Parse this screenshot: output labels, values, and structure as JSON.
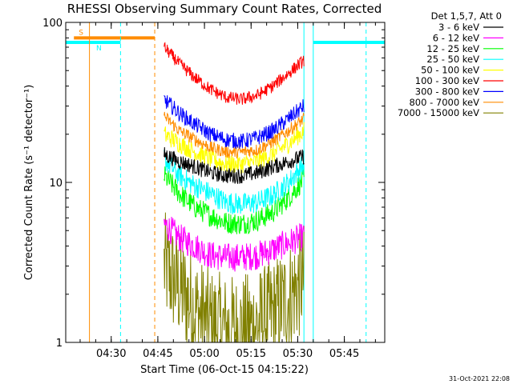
{
  "chart_data": {
    "type": "line",
    "title": "RHESSI Observing Summary Count Rates, Corrected",
    "xlabel": "Start Time (06-Oct-15 04:15:22)",
    "ylabel": "Corrected Count Rate (s⁻¹ detector⁻¹)",
    "xscale": "time",
    "yscale": "log",
    "xlim": [
      "04:15:22",
      "05:58:00"
    ],
    "ylim": [
      1,
      100
    ],
    "x_ticks": [
      "04:30",
      "04:45",
      "05:00",
      "05:15",
      "05:30",
      "05:45"
    ],
    "y_ticks": [
      "1",
      "10",
      "100"
    ],
    "legend_title": "Det 1,5,7, Att 0",
    "legend_position": "right",
    "series": [
      {
        "name": "3 - 6 keV",
        "color": "#000000",
        "x": [
          "04:47",
          "04:52",
          "04:57",
          "05:02",
          "05:07",
          "05:12",
          "05:17",
          "05:22",
          "05:27",
          "05:32"
        ],
        "values": [
          15,
          13.5,
          12.5,
          11.5,
          11,
          11,
          11.5,
          12.5,
          13.5,
          14.5
        ]
      },
      {
        "name": "6 - 12 keV",
        "color": "#ff00ff",
        "x": [
          "04:47",
          "04:52",
          "04:57",
          "05:02",
          "05:07",
          "05:12",
          "05:17",
          "05:22",
          "05:27",
          "05:32"
        ],
        "values": [
          5.5,
          4.5,
          4,
          3.5,
          3.4,
          3.4,
          3.5,
          3.8,
          4.2,
          4.6
        ]
      },
      {
        "name": "12 - 25 keV",
        "color": "#00ff00",
        "x": [
          "04:47",
          "04:52",
          "04:57",
          "05:02",
          "05:07",
          "05:12",
          "05:17",
          "05:22",
          "05:27",
          "05:32"
        ],
        "values": [
          11,
          8.5,
          7,
          6.2,
          5.6,
          5.5,
          5.8,
          6.5,
          8,
          10.5
        ]
      },
      {
        "name": "25 - 50 keV",
        "color": "#00ffff",
        "x": [
          "04:47",
          "04:52",
          "04:57",
          "05:02",
          "05:07",
          "05:12",
          "05:17",
          "05:22",
          "05:27",
          "05:32"
        ],
        "values": [
          14,
          11,
          9.5,
          8.5,
          7.5,
          7.3,
          7.5,
          8.3,
          10,
          13
        ]
      },
      {
        "name": "50 - 100 keV",
        "color": "#ffff00",
        "x": [
          "04:47",
          "04:52",
          "04:57",
          "05:02",
          "05:07",
          "05:12",
          "05:17",
          "05:22",
          "05:27",
          "05:32"
        ],
        "values": [
          20,
          17.5,
          15.5,
          14,
          13,
          13,
          13.5,
          15,
          17.5,
          21
        ]
      },
      {
        "name": "100 - 300 keV",
        "color": "#ff0000",
        "x": [
          "04:47",
          "04:52",
          "04:57",
          "05:02",
          "05:07",
          "05:12",
          "05:17",
          "05:22",
          "05:27",
          "05:32"
        ],
        "values": [
          70,
          55,
          45,
          38,
          34,
          33,
          35,
          40,
          48,
          58
        ]
      },
      {
        "name": "300 - 800 keV",
        "color": "#0000ff",
        "x": [
          "04:47",
          "04:52",
          "04:57",
          "05:02",
          "05:07",
          "05:12",
          "05:17",
          "05:22",
          "05:27",
          "05:32"
        ],
        "values": [
          33,
          27,
          23,
          20,
          18.5,
          18,
          19,
          21,
          25,
          30
        ]
      },
      {
        "name": "800 - 7000 keV",
        "color": "#ff8c00",
        "x": [
          "04:47",
          "04:52",
          "04:57",
          "05:02",
          "05:07",
          "05:12",
          "05:17",
          "05:22",
          "05:27",
          "05:32"
        ],
        "values": [
          26,
          21,
          18.5,
          16.5,
          15.5,
          15.5,
          16,
          18,
          21,
          25
        ]
      },
      {
        "name": "7000 - 15000 keV",
        "color": "#808000",
        "x": [
          "04:47",
          "04:52",
          "04:57",
          "05:02",
          "05:07",
          "05:12",
          "05:17",
          "05:22",
          "05:27",
          "05:32"
        ],
        "values": [
          3,
          2.2,
          1.6,
          1.3,
          1.2,
          1.2,
          1.3,
          1.5,
          1.9,
          2.5
        ]
      }
    ],
    "flags": [
      {
        "label": "S",
        "color": "#ff8c00",
        "start": "04:18",
        "end": "04:44",
        "level": 80
      },
      {
        "label": "N",
        "color": "#00ffff",
        "start": "04:15:22",
        "end": "04:33",
        "level": 75
      },
      {
        "label": "",
        "color": "#00ffff",
        "start": "05:35",
        "end": "05:58",
        "level": 75
      }
    ],
    "markers": [
      {
        "time": "04:23",
        "color": "#ff8c00",
        "style": "solid"
      },
      {
        "time": "04:33",
        "color": "#00ffff",
        "style": "dashed"
      },
      {
        "time": "04:44",
        "color": "#ff8c00",
        "style": "dashed"
      },
      {
        "time": "05:32",
        "color": "#00ffff",
        "style": "solid"
      },
      {
        "time": "05:35",
        "color": "#00ffff",
        "style": "solid"
      },
      {
        "time": "05:52",
        "color": "#00ffff",
        "style": "dashed"
      }
    ]
  },
  "timestamp": "31-Oct-2021 22:08"
}
